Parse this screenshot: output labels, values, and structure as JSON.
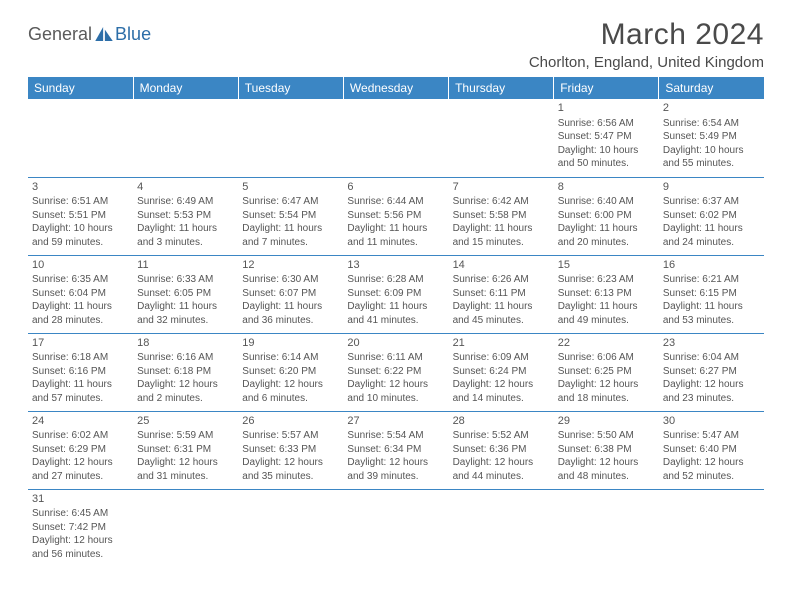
{
  "logo": {
    "part1": "General",
    "part2": "Blue"
  },
  "title": "March 2024",
  "location": "Chorlton, England, United Kingdom",
  "colors": {
    "header_bg": "#3b86c4",
    "header_text": "#ffffff",
    "cell_border": "#3b86c4",
    "text": "#4a4a4a",
    "logo_blue": "#2d6ea8"
  },
  "days_of_week": [
    "Sunday",
    "Monday",
    "Tuesday",
    "Wednesday",
    "Thursday",
    "Friday",
    "Saturday"
  ],
  "weeks": [
    [
      null,
      null,
      null,
      null,
      null,
      {
        "n": "1",
        "sunrise": "6:56 AM",
        "sunset": "5:47 PM",
        "daylight": "10 hours and 50 minutes."
      },
      {
        "n": "2",
        "sunrise": "6:54 AM",
        "sunset": "5:49 PM",
        "daylight": "10 hours and 55 minutes."
      }
    ],
    [
      {
        "n": "3",
        "sunrise": "6:51 AM",
        "sunset": "5:51 PM",
        "daylight": "10 hours and 59 minutes."
      },
      {
        "n": "4",
        "sunrise": "6:49 AM",
        "sunset": "5:53 PM",
        "daylight": "11 hours and 3 minutes."
      },
      {
        "n": "5",
        "sunrise": "6:47 AM",
        "sunset": "5:54 PM",
        "daylight": "11 hours and 7 minutes."
      },
      {
        "n": "6",
        "sunrise": "6:44 AM",
        "sunset": "5:56 PM",
        "daylight": "11 hours and 11 minutes."
      },
      {
        "n": "7",
        "sunrise": "6:42 AM",
        "sunset": "5:58 PM",
        "daylight": "11 hours and 15 minutes."
      },
      {
        "n": "8",
        "sunrise": "6:40 AM",
        "sunset": "6:00 PM",
        "daylight": "11 hours and 20 minutes."
      },
      {
        "n": "9",
        "sunrise": "6:37 AM",
        "sunset": "6:02 PM",
        "daylight": "11 hours and 24 minutes."
      }
    ],
    [
      {
        "n": "10",
        "sunrise": "6:35 AM",
        "sunset": "6:04 PM",
        "daylight": "11 hours and 28 minutes."
      },
      {
        "n": "11",
        "sunrise": "6:33 AM",
        "sunset": "6:05 PM",
        "daylight": "11 hours and 32 minutes."
      },
      {
        "n": "12",
        "sunrise": "6:30 AM",
        "sunset": "6:07 PM",
        "daylight": "11 hours and 36 minutes."
      },
      {
        "n": "13",
        "sunrise": "6:28 AM",
        "sunset": "6:09 PM",
        "daylight": "11 hours and 41 minutes."
      },
      {
        "n": "14",
        "sunrise": "6:26 AM",
        "sunset": "6:11 PM",
        "daylight": "11 hours and 45 minutes."
      },
      {
        "n": "15",
        "sunrise": "6:23 AM",
        "sunset": "6:13 PM",
        "daylight": "11 hours and 49 minutes."
      },
      {
        "n": "16",
        "sunrise": "6:21 AM",
        "sunset": "6:15 PM",
        "daylight": "11 hours and 53 minutes."
      }
    ],
    [
      {
        "n": "17",
        "sunrise": "6:18 AM",
        "sunset": "6:16 PM",
        "daylight": "11 hours and 57 minutes."
      },
      {
        "n": "18",
        "sunrise": "6:16 AM",
        "sunset": "6:18 PM",
        "daylight": "12 hours and 2 minutes."
      },
      {
        "n": "19",
        "sunrise": "6:14 AM",
        "sunset": "6:20 PM",
        "daylight": "12 hours and 6 minutes."
      },
      {
        "n": "20",
        "sunrise": "6:11 AM",
        "sunset": "6:22 PM",
        "daylight": "12 hours and 10 minutes."
      },
      {
        "n": "21",
        "sunrise": "6:09 AM",
        "sunset": "6:24 PM",
        "daylight": "12 hours and 14 minutes."
      },
      {
        "n": "22",
        "sunrise": "6:06 AM",
        "sunset": "6:25 PM",
        "daylight": "12 hours and 18 minutes."
      },
      {
        "n": "23",
        "sunrise": "6:04 AM",
        "sunset": "6:27 PM",
        "daylight": "12 hours and 23 minutes."
      }
    ],
    [
      {
        "n": "24",
        "sunrise": "6:02 AM",
        "sunset": "6:29 PM",
        "daylight": "12 hours and 27 minutes."
      },
      {
        "n": "25",
        "sunrise": "5:59 AM",
        "sunset": "6:31 PM",
        "daylight": "12 hours and 31 minutes."
      },
      {
        "n": "26",
        "sunrise": "5:57 AM",
        "sunset": "6:33 PM",
        "daylight": "12 hours and 35 minutes."
      },
      {
        "n": "27",
        "sunrise": "5:54 AM",
        "sunset": "6:34 PM",
        "daylight": "12 hours and 39 minutes."
      },
      {
        "n": "28",
        "sunrise": "5:52 AM",
        "sunset": "6:36 PM",
        "daylight": "12 hours and 44 minutes."
      },
      {
        "n": "29",
        "sunrise": "5:50 AM",
        "sunset": "6:38 PM",
        "daylight": "12 hours and 48 minutes."
      },
      {
        "n": "30",
        "sunrise": "5:47 AM",
        "sunset": "6:40 PM",
        "daylight": "12 hours and 52 minutes."
      }
    ],
    [
      {
        "n": "31",
        "sunrise": "6:45 AM",
        "sunset": "7:42 PM",
        "daylight": "12 hours and 56 minutes."
      },
      null,
      null,
      null,
      null,
      null,
      null
    ]
  ]
}
